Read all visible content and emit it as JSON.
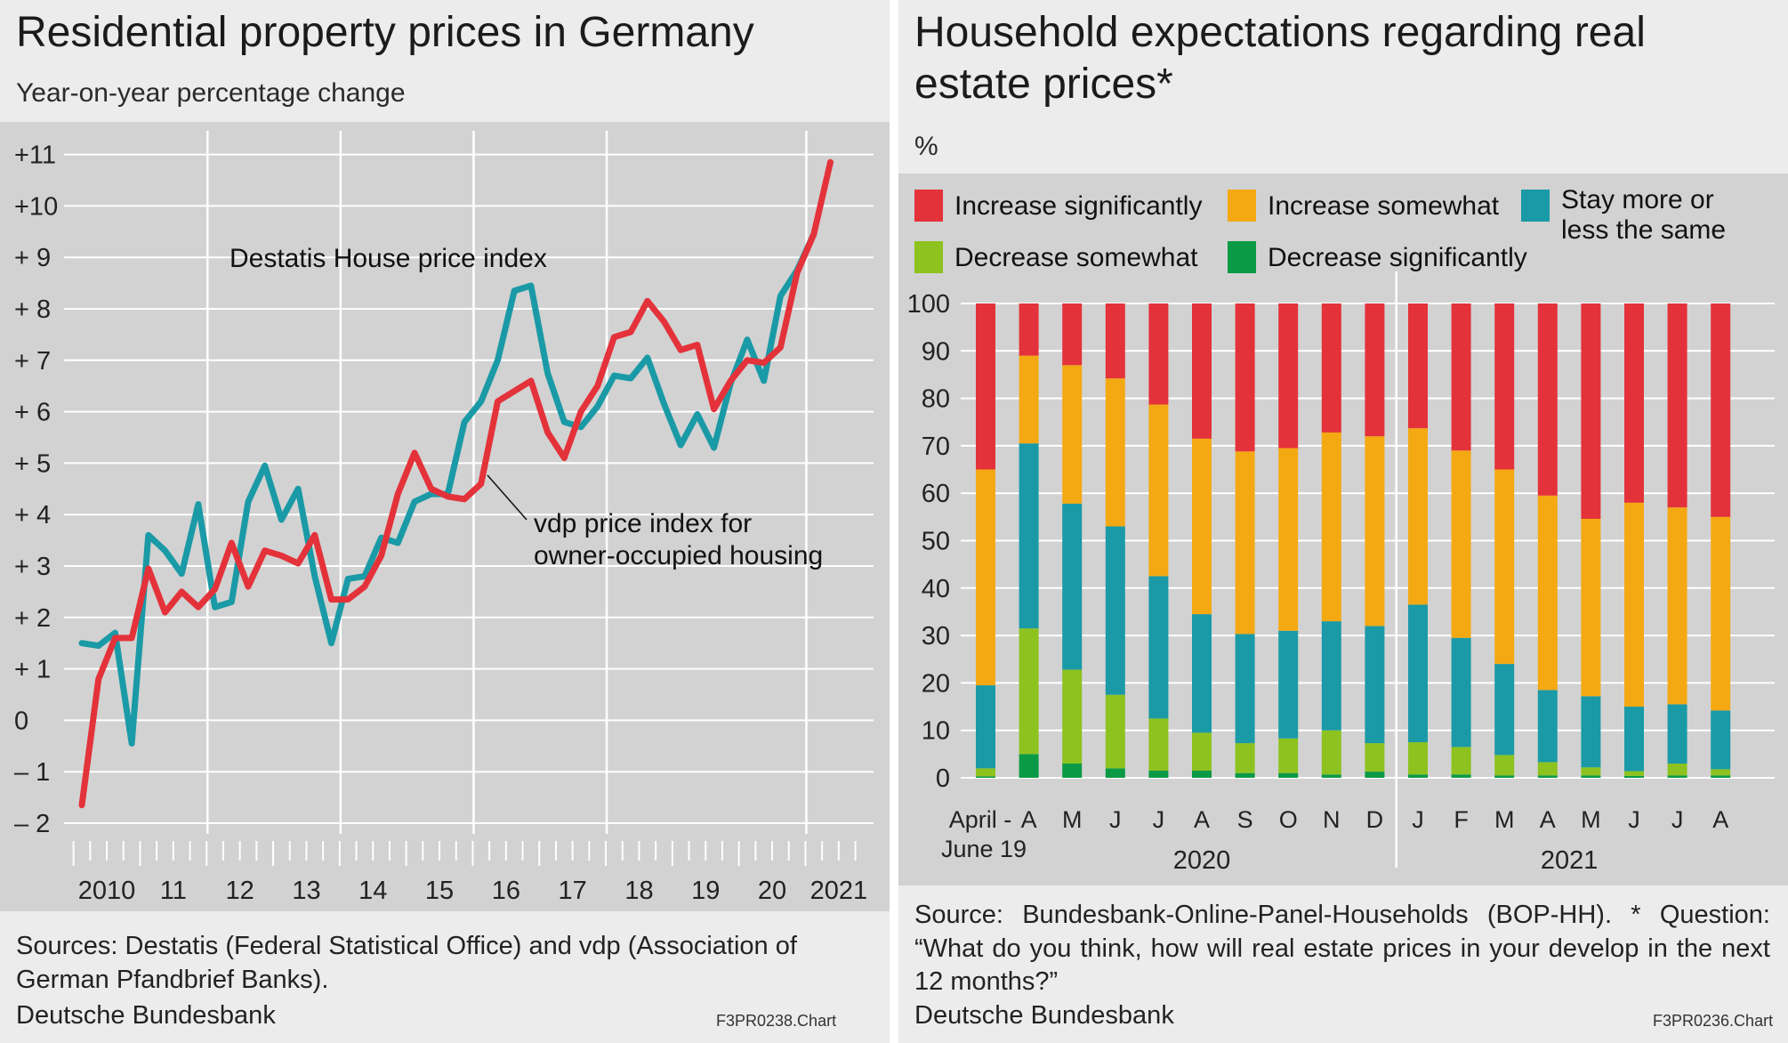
{
  "left": {
    "title": "Residential property prices in Germany",
    "subtitle": "Year-on-year percentage change",
    "source": "Sources: Destatis (Federal Statistical Office) and vdp (Association of German Pfandbrief Banks).",
    "brand": "Deutsche Bundesbank",
    "code": "F3PR0238.Chart"
  },
  "right": {
    "title": "Household expectations regarding real estate prices*",
    "unit": "%",
    "source": "Source: Bundesbank-Online-Panel-Households (BOP-HH). * Question: “What do you think, how will real estate prices in your develop in the next 12 months?”",
    "brand": "Deutsche Bundesbank",
    "code": "F3PR0236.Chart"
  },
  "colors": {
    "red": "#e4323a",
    "teal": "#1a9aa6",
    "orange": "#f4a913",
    "lightgreen": "#8dc21f",
    "darkgreen": "#0a9a45",
    "panel_bg": "#ececec",
    "plot_bg": "#d2d2d2"
  },
  "chart_data": [
    {
      "type": "line",
      "title": "Residential property prices in Germany",
      "ylabel": "Year-on-year percentage change",
      "ylim": [
        -2,
        11
      ],
      "y_tick_labels": [
        "– 2",
        "– 1",
        "0",
        "+ 1",
        "+ 2",
        "+ 3",
        "+ 4",
        "+ 5",
        "+ 6",
        "+ 7",
        "+ 8",
        "+ 9",
        "+10",
        "+11"
      ],
      "x_tick_labels": [
        "2010",
        "11",
        "12",
        "13",
        "14",
        "15",
        "16",
        "17",
        "18",
        "19",
        "20",
        "2021"
      ],
      "x_unit": "quarter",
      "series": [
        {
          "name": "Destatis House price index",
          "color": "#1a9aa6",
          "start": "2010 Q1",
          "values": [
            1.5,
            1.45,
            1.7,
            -0.45,
            3.6,
            3.3,
            2.85,
            4.2,
            2.2,
            2.3,
            4.25,
            4.95,
            3.9,
            4.5,
            2.8,
            1.5,
            2.75,
            2.8,
            3.55,
            3.45,
            4.25,
            4.4,
            4.4,
            5.8,
            6.2,
            7.0,
            8.35,
            8.45,
            6.75,
            5.8,
            5.7,
            6.1,
            6.7,
            6.65,
            7.05,
            6.15,
            5.35,
            5.95,
            5.3,
            6.55,
            7.4,
            6.6,
            8.25,
            8.75,
            9.45
          ],
          "end_label": "last observation 2021 Q1"
        },
        {
          "name": "vdp price index for owner-occupied housing",
          "color": "#e4323a",
          "start": "2010 Q1",
          "values": [
            -1.65,
            0.8,
            1.6,
            1.6,
            2.95,
            2.1,
            2.5,
            2.2,
            2.55,
            3.45,
            2.6,
            3.3,
            3.2,
            3.05,
            3.6,
            2.35,
            2.35,
            2.6,
            3.2,
            4.4,
            5.2,
            4.5,
            4.35,
            4.3,
            4.6,
            6.2,
            6.4,
            6.6,
            5.6,
            5.1,
            6.0,
            6.5,
            7.45,
            7.55,
            8.15,
            7.75,
            7.2,
            7.3,
            6.05,
            6.6,
            7.0,
            6.95,
            7.25,
            8.7,
            9.45,
            10.85
          ]
        }
      ],
      "annotations": [
        "Destatis House price index",
        "vdp price index for owner-occupied housing"
      ]
    },
    {
      "type": "bar",
      "stacked": true,
      "title": "Household expectations regarding real estate prices*",
      "ylabel": "%",
      "ylim": [
        0,
        100
      ],
      "y_tick_labels": [
        "0",
        "10",
        "20",
        "30",
        "40",
        "50",
        "60",
        "70",
        "80",
        "90",
        "100"
      ],
      "categories": [
        "April–June 19",
        "A",
        "M",
        "J",
        "J",
        "A",
        "S",
        "O",
        "N",
        "D",
        "J",
        "F",
        "M",
        "A",
        "M",
        "J",
        "J",
        "A"
      ],
      "category_line1": [
        "April -",
        "A",
        "M",
        "J",
        "J",
        "A",
        "S",
        "O",
        "N",
        "D",
        "J",
        "F",
        "M",
        "A",
        "M",
        "J",
        "J",
        "A"
      ],
      "category_line2": "June 19",
      "year_labels": [
        "2020",
        "2021"
      ],
      "legend": [
        "Increase significantly",
        "Increase somewhat",
        "Stay more or less the same",
        "Decrease somewhat",
        "Decrease significantly"
      ],
      "legend_text": {
        "inc_sig": "Increase significantly",
        "inc_some": "Increase somewhat",
        "stay_1": "Stay more or",
        "stay_2": "less the same",
        "dec_some": "Decrease somewhat",
        "dec_sig": "Decrease significantly"
      },
      "series": [
        {
          "name": "Decrease significantly",
          "color": "#0a9a45",
          "values": [
            0.3,
            5.0,
            3.0,
            2.0,
            1.5,
            1.5,
            1.0,
            1.0,
            0.7,
            1.3,
            0.7,
            0.7,
            0.5,
            0.5,
            0.5,
            0.4,
            0.5,
            0.5
          ]
        },
        {
          "name": "Decrease somewhat",
          "color": "#8dc21f",
          "values": [
            1.7,
            26.5,
            19.8,
            15.5,
            11.0,
            8.0,
            6.3,
            7.3,
            9.3,
            6.0,
            6.8,
            5.8,
            4.3,
            2.8,
            1.7,
            1.0,
            2.5,
            1.3
          ]
        },
        {
          "name": "Stay more or less the same",
          "color": "#1a9aa6",
          "values": [
            17.5,
            39.0,
            35.0,
            35.5,
            30.0,
            25.0,
            23.0,
            22.7,
            23.0,
            24.7,
            29.0,
            23.0,
            19.2,
            15.2,
            15.0,
            13.6,
            12.5,
            12.4
          ]
        },
        {
          "name": "Increase somewhat",
          "color": "#f4a913",
          "values": [
            45.5,
            18.5,
            29.2,
            31.2,
            36.2,
            37.0,
            38.5,
            38.5,
            39.8,
            40.0,
            37.2,
            39.5,
            41.0,
            41.0,
            37.4,
            43.0,
            41.5,
            40.8
          ]
        },
        {
          "name": "Increase significantly",
          "color": "#e4323a",
          "values": [
            35.0,
            11.0,
            13.0,
            15.8,
            21.3,
            28.5,
            31.2,
            30.5,
            27.2,
            28.0,
            26.3,
            31.0,
            35.0,
            40.5,
            45.4,
            42.0,
            43.0,
            45.0
          ]
        }
      ]
    }
  ]
}
